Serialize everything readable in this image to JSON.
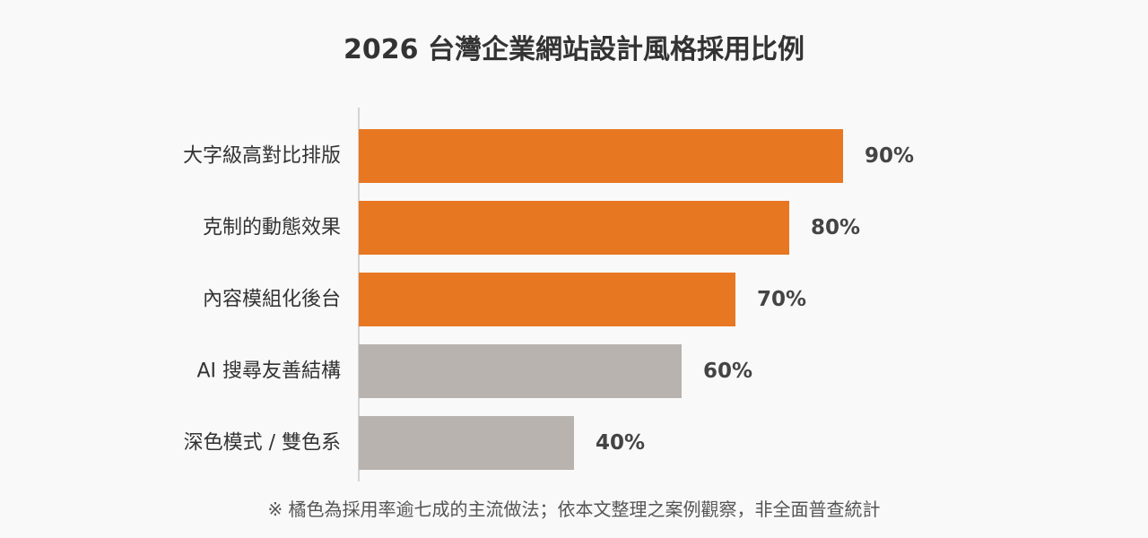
{
  "chart_data": {
    "type": "bar",
    "orientation": "horizontal",
    "title": "2026 台灣企業網站設計風格採用比例",
    "categories": [
      "大字級高對比排版",
      "克制的動態效果",
      "內容模組化後台",
      "AI 搜尋友善結構",
      "深色模式 / 雙色系"
    ],
    "values": [
      90,
      80,
      70,
      60,
      40
    ],
    "value_labels": [
      "90%",
      "80%",
      "70%",
      "60%",
      "40%"
    ],
    "unit": "%",
    "xlim": [
      0,
      100
    ],
    "highlighted": [
      true,
      true,
      true,
      false,
      false
    ],
    "colors": {
      "highlight": "#E87722",
      "normal": "#B8B3AE",
      "axis": "#C8C8C8",
      "label": "#333333",
      "value": "#444444"
    },
    "grid": false,
    "footnote": "※ 橘色為採用率逾七成的主流做法；依本文整理之案例觀察，非全面普查統計"
  }
}
